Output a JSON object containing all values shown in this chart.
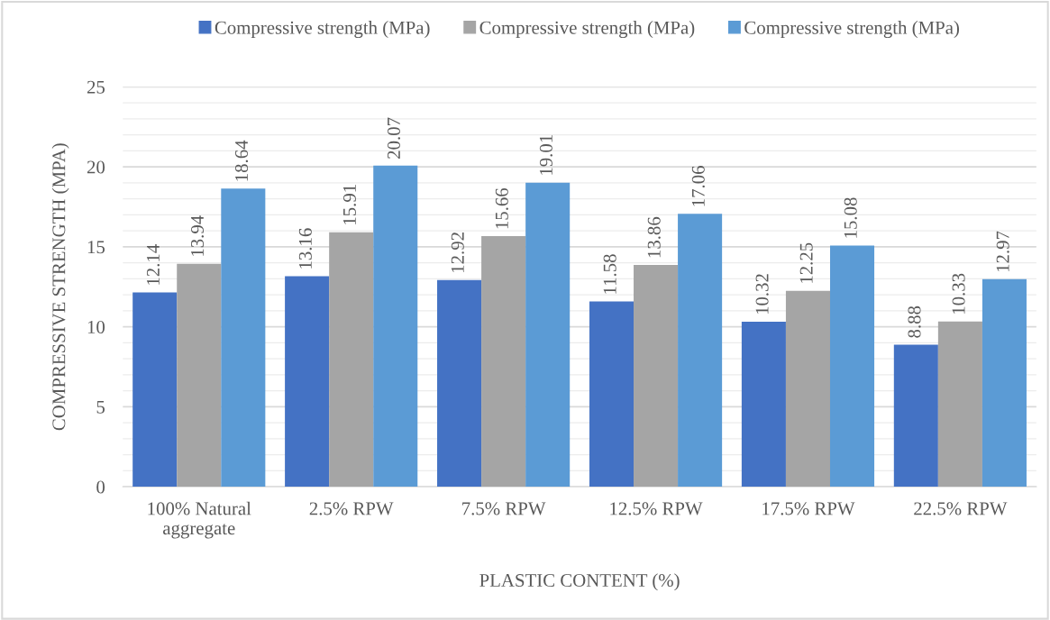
{
  "chart_data": {
    "type": "bar",
    "categories": [
      "100% Natural\naggregate",
      "2.5% RPW",
      "7.5% RPW",
      "12.5% RPW",
      "17.5% RPW",
      "22.5% RPW"
    ],
    "series": [
      {
        "name": "Compressive strength (MPa)",
        "color": "#4472c4",
        "values": [
          12.14,
          13.16,
          12.92,
          11.58,
          10.32,
          8.88
        ]
      },
      {
        "name": "Compressive strength (MPa)",
        "color": "#a5a5a5",
        "values": [
          13.94,
          15.91,
          15.66,
          13.86,
          12.25,
          10.33
        ]
      },
      {
        "name": "Compressive strength (MPa)",
        "color": "#5b9bd5",
        "values": [
          18.64,
          20.07,
          19.01,
          17.06,
          15.08,
          12.97
        ]
      }
    ],
    "xlabel": "PLASTIC CONTENT (%)",
    "ylabel": "COMPRESSIVE STRENGTH (MPA)",
    "ylim": [
      0,
      25
    ],
    "yticks": [
      0,
      {
        "value": 1,
        "label": null
      },
      {
        "value": 2,
        "label": null
      },
      {
        "value": 3,
        "label": null
      },
      {
        "value": 4,
        "label": null
      },
      5,
      {
        "value": 6,
        "label": null
      },
      {
        "value": 7,
        "label": null
      },
      {
        "value": 8,
        "label": null
      },
      {
        "value": 9,
        "label": null
      },
      10,
      {
        "value": 11,
        "label": null
      },
      {
        "value": 12,
        "label": null
      },
      {
        "value": 13,
        "label": null
      },
      {
        "value": 14,
        "label": null
      },
      15,
      {
        "value": 16,
        "label": null
      },
      {
        "value": 17,
        "label": null
      },
      {
        "value": 18,
        "label": null
      },
      {
        "value": 19,
        "label": null
      },
      20,
      {
        "value": 21,
        "label": null
      },
      {
        "value": 22,
        "label": null
      },
      {
        "value": 23,
        "label": null
      },
      {
        "value": 24,
        "label": null
      },
      25
    ],
    "grid": "y",
    "legend": "top",
    "data_labels": true
  }
}
